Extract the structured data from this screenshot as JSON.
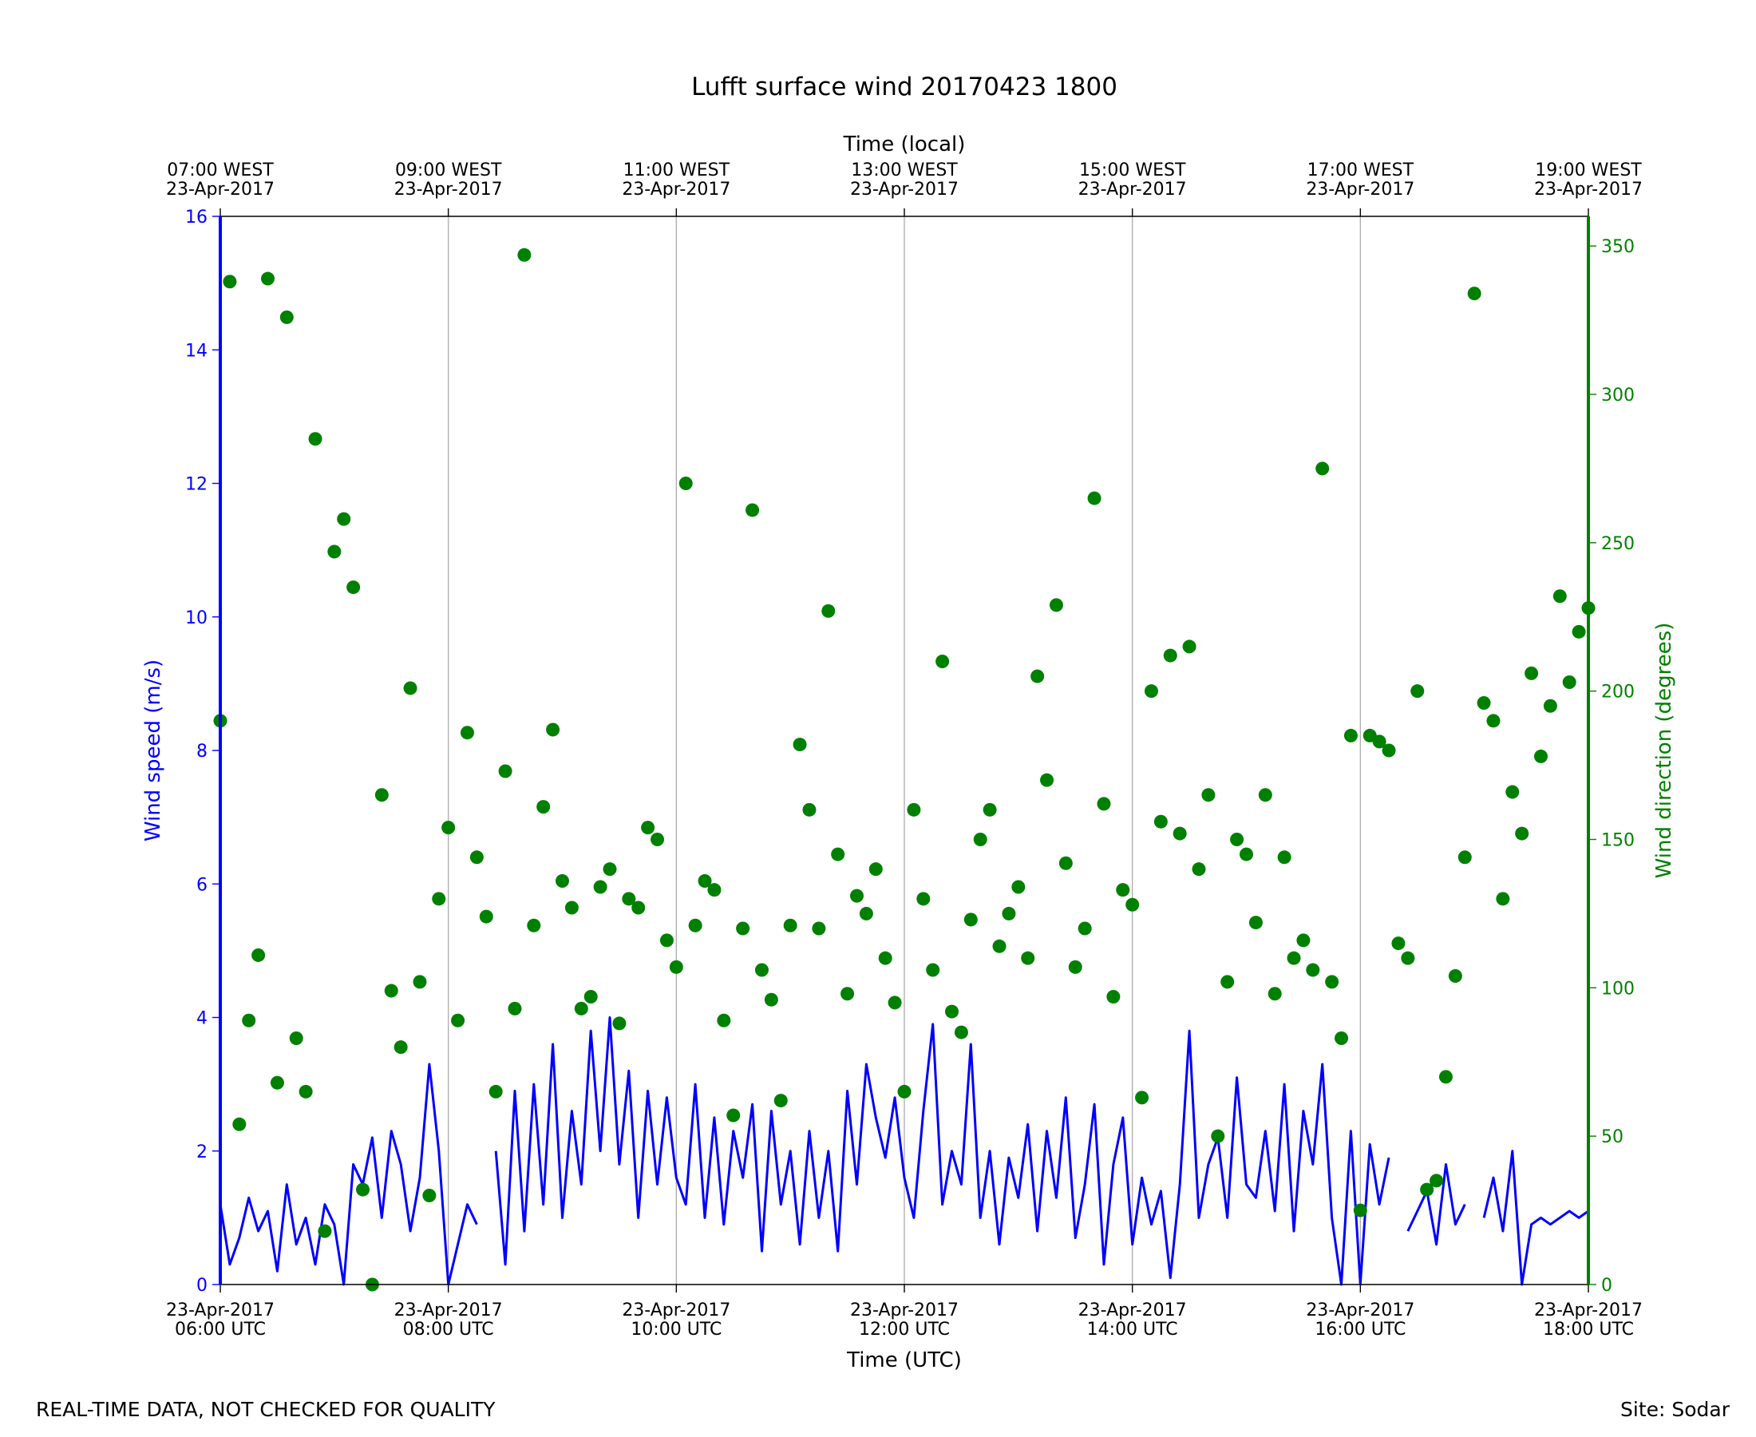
{
  "chart_data": {
    "type": "line-scatter",
    "title": "Lufft surface wind 20170423 1800",
    "xlabel": "Time (UTC)",
    "x2label": "Time (local)",
    "ylabel": "Wind speed (m/s)",
    "y2label": "Wind direction (degrees)",
    "footer_left": "REAL-TIME DATA, NOT CHECKED FOR QUALITY",
    "footer_right": "Site: Sodar",
    "grid": true,
    "xlim": [
      "2017-04-23 06:00",
      "2017-04-23 18:00"
    ],
    "xticks": [
      {
        "value": "2017-04-23 06:00",
        "label": "23-Apr-2017\n06:00 UTC"
      },
      {
        "value": "2017-04-23 08:00",
        "label": "23-Apr-2017\n08:00 UTC"
      },
      {
        "value": "2017-04-23 10:00",
        "label": "23-Apr-2017\n10:00 UTC"
      },
      {
        "value": "2017-04-23 12:00",
        "label": "23-Apr-2017\n12:00 UTC"
      },
      {
        "value": "2017-04-23 14:00",
        "label": "23-Apr-2017\n14:00 UTC"
      },
      {
        "value": "2017-04-23 16:00",
        "label": "23-Apr-2017\n16:00 UTC"
      },
      {
        "value": "2017-04-23 18:00",
        "label": "23-Apr-2017\n18:00 UTC"
      }
    ],
    "x2ticks": [
      {
        "value": "2017-04-23 06:00",
        "label": "07:00 WEST\n23-Apr-2017"
      },
      {
        "value": "2017-04-23 08:00",
        "label": "09:00 WEST\n23-Apr-2017"
      },
      {
        "value": "2017-04-23 10:00",
        "label": "11:00 WEST\n23-Apr-2017"
      },
      {
        "value": "2017-04-23 12:00",
        "label": "13:00 WEST\n23-Apr-2017"
      },
      {
        "value": "2017-04-23 14:00",
        "label": "15:00 WEST\n23-Apr-2017"
      },
      {
        "value": "2017-04-23 16:00",
        "label": "17:00 WEST\n23-Apr-2017"
      },
      {
        "value": "2017-04-23 18:00",
        "label": "19:00 WEST\n23-Apr-2017"
      }
    ],
    "ylim": [
      0,
      16
    ],
    "yticks": [
      0,
      2,
      4,
      6,
      8,
      10,
      12,
      14,
      16
    ],
    "y2lim": [
      0,
      360
    ],
    "y2ticks": [
      0,
      50,
      100,
      150,
      200,
      250,
      300,
      350
    ],
    "x": [
      "2017-04-23 06:00",
      "2017-04-23 06:05",
      "2017-04-23 06:10",
      "2017-04-23 06:15",
      "2017-04-23 06:20",
      "2017-04-23 06:25",
      "2017-04-23 06:30",
      "2017-04-23 06:35",
      "2017-04-23 06:40",
      "2017-04-23 06:45",
      "2017-04-23 06:50",
      "2017-04-23 06:55",
      "2017-04-23 07:00",
      "2017-04-23 07:05",
      "2017-04-23 07:10",
      "2017-04-23 07:15",
      "2017-04-23 07:20",
      "2017-04-23 07:25",
      "2017-04-23 07:30",
      "2017-04-23 07:35",
      "2017-04-23 07:40",
      "2017-04-23 07:45",
      "2017-04-23 07:50",
      "2017-04-23 07:55",
      "2017-04-23 08:00",
      "2017-04-23 08:05",
      "2017-04-23 08:10",
      "2017-04-23 08:15",
      "2017-04-23 08:20",
      "2017-04-23 08:25",
      "2017-04-23 08:30",
      "2017-04-23 08:35",
      "2017-04-23 08:40",
      "2017-04-23 08:45",
      "2017-04-23 08:50",
      "2017-04-23 08:55",
      "2017-04-23 09:00",
      "2017-04-23 09:05",
      "2017-04-23 09:10",
      "2017-04-23 09:15",
      "2017-04-23 09:20",
      "2017-04-23 09:25",
      "2017-04-23 09:30",
      "2017-04-23 09:35",
      "2017-04-23 09:40",
      "2017-04-23 09:45",
      "2017-04-23 09:50",
      "2017-04-23 09:55",
      "2017-04-23 10:00",
      "2017-04-23 10:05",
      "2017-04-23 10:10",
      "2017-04-23 10:15",
      "2017-04-23 10:20",
      "2017-04-23 10:25",
      "2017-04-23 10:30",
      "2017-04-23 10:35",
      "2017-04-23 10:40",
      "2017-04-23 10:45",
      "2017-04-23 10:50",
      "2017-04-23 10:55",
      "2017-04-23 11:00",
      "2017-04-23 11:05",
      "2017-04-23 11:10",
      "2017-04-23 11:15",
      "2017-04-23 11:20",
      "2017-04-23 11:25",
      "2017-04-23 11:30",
      "2017-04-23 11:35",
      "2017-04-23 11:40",
      "2017-04-23 11:45",
      "2017-04-23 11:50",
      "2017-04-23 11:55",
      "2017-04-23 12:00",
      "2017-04-23 12:05",
      "2017-04-23 12:10",
      "2017-04-23 12:15",
      "2017-04-23 12:20",
      "2017-04-23 12:25",
      "2017-04-23 12:30",
      "2017-04-23 12:35",
      "2017-04-23 12:40",
      "2017-04-23 12:45",
      "2017-04-23 12:50",
      "2017-04-23 12:55",
      "2017-04-23 13:00",
      "2017-04-23 13:05",
      "2017-04-23 13:10",
      "2017-04-23 13:15",
      "2017-04-23 13:20",
      "2017-04-23 13:25",
      "2017-04-23 13:30",
      "2017-04-23 13:35",
      "2017-04-23 13:40",
      "2017-04-23 13:45",
      "2017-04-23 13:50",
      "2017-04-23 13:55",
      "2017-04-23 14:00",
      "2017-04-23 14:05",
      "2017-04-23 14:10",
      "2017-04-23 14:15",
      "2017-04-23 14:20",
      "2017-04-23 14:25",
      "2017-04-23 14:30",
      "2017-04-23 14:35",
      "2017-04-23 14:40",
      "2017-04-23 14:45",
      "2017-04-23 14:50",
      "2017-04-23 14:55",
      "2017-04-23 15:00",
      "2017-04-23 15:05",
      "2017-04-23 15:10",
      "2017-04-23 15:15",
      "2017-04-23 15:20",
      "2017-04-23 15:25",
      "2017-04-23 15:30",
      "2017-04-23 15:35",
      "2017-04-23 15:40",
      "2017-04-23 15:45",
      "2017-04-23 15:50",
      "2017-04-23 15:55",
      "2017-04-23 16:00",
      "2017-04-23 16:05",
      "2017-04-23 16:10",
      "2017-04-23 16:15",
      "2017-04-23 16:20",
      "2017-04-23 16:25",
      "2017-04-23 16:30",
      "2017-04-23 16:35",
      "2017-04-23 16:40",
      "2017-04-23 16:45",
      "2017-04-23 16:50",
      "2017-04-23 16:55",
      "2017-04-23 17:00",
      "2017-04-23 17:05",
      "2017-04-23 17:10",
      "2017-04-23 17:15",
      "2017-04-23 17:20",
      "2017-04-23 17:25",
      "2017-04-23 17:30",
      "2017-04-23 17:35",
      "2017-04-23 17:40",
      "2017-04-23 17:45",
      "2017-04-23 17:50",
      "2017-04-23 17:55",
      "2017-04-23 18:00"
    ],
    "series": [
      {
        "name": "Wind speed",
        "type": "line",
        "color": "#0000ff",
        "axis": "y",
        "values": [
          1.2,
          0.3,
          0.7,
          1.3,
          0.8,
          1.1,
          0.2,
          1.5,
          0.6,
          1.0,
          0.3,
          1.2,
          0.9,
          0.0,
          1.8,
          1.5,
          2.2,
          1.0,
          2.3,
          1.8,
          0.8,
          1.6,
          3.3,
          2.0,
          0.0,
          0.6,
          1.2,
          0.9,
          null,
          2.0,
          0.3,
          2.9,
          0.8,
          3.0,
          1.2,
          3.6,
          1.0,
          2.6,
          1.5,
          3.8,
          2.0,
          4.0,
          1.8,
          3.2,
          1.0,
          2.9,
          1.5,
          2.8,
          1.6,
          1.2,
          3.0,
          1.0,
          2.5,
          0.9,
          2.3,
          1.6,
          2.7,
          0.5,
          2.6,
          1.2,
          2.0,
          0.6,
          2.3,
          1.0,
          2.0,
          0.5,
          2.9,
          1.5,
          3.3,
          2.5,
          1.9,
          2.8,
          1.6,
          1.0,
          2.6,
          3.9,
          1.2,
          2.0,
          1.5,
          3.6,
          1.0,
          2.0,
          0.6,
          1.9,
          1.3,
          2.4,
          0.8,
          2.3,
          1.3,
          2.8,
          0.7,
          1.5,
          2.7,
          0.3,
          1.8,
          2.5,
          0.6,
          1.6,
          0.9,
          1.4,
          0.1,
          1.5,
          3.8,
          1.0,
          1.8,
          2.2,
          1.0,
          3.1,
          1.5,
          1.3,
          2.3,
          1.1,
          3.0,
          0.8,
          2.6,
          1.8,
          3.3,
          1.0,
          0.0,
          2.3,
          0.0,
          2.1,
          1.2,
          1.9,
          null,
          0.8,
          1.1,
          1.4,
          0.6,
          1.8,
          0.9,
          1.2,
          null,
          1.0,
          1.6,
          0.8,
          2.0,
          0.0,
          0.9,
          1.0,
          0.9,
          1.0,
          1.1,
          1.0,
          1.1
        ]
      },
      {
        "name": "Wind direction",
        "type": "scatter",
        "color": "#008000",
        "axis": "y2",
        "values": [
          190,
          338,
          54,
          89,
          111,
          339,
          68,
          326,
          83,
          65,
          285,
          18,
          247,
          258,
          235,
          32,
          0,
          165,
          99,
          80,
          201,
          102,
          30,
          130,
          154,
          89,
          186,
          144,
          124,
          65,
          173,
          93,
          347,
          121,
          161,
          187,
          136,
          127,
          93,
          97,
          134,
          140,
          88,
          130,
          127,
          154,
          150,
          116,
          107,
          270,
          121,
          136,
          133,
          89,
          57,
          120,
          261,
          106,
          96,
          62,
          121,
          182,
          160,
          120,
          227,
          145,
          98,
          131,
          125,
          140,
          110,
          95,
          65,
          160,
          130,
          106,
          210,
          92,
          85,
          123,
          150,
          160,
          114,
          125,
          134,
          110,
          205,
          170,
          229,
          142,
          107,
          120,
          265,
          162,
          97,
          133,
          128,
          63,
          200,
          156,
          212,
          152,
          215,
          140,
          165,
          50,
          102,
          150,
          145,
          122,
          165,
          98,
          144,
          110,
          116,
          106,
          275,
          102,
          83,
          185,
          25,
          185,
          183,
          180,
          115,
          110,
          200,
          32,
          35,
          70,
          104,
          144,
          334,
          196,
          190,
          130,
          166,
          152,
          206,
          178,
          195,
          232,
          203,
          220,
          228
        ]
      }
    ]
  }
}
